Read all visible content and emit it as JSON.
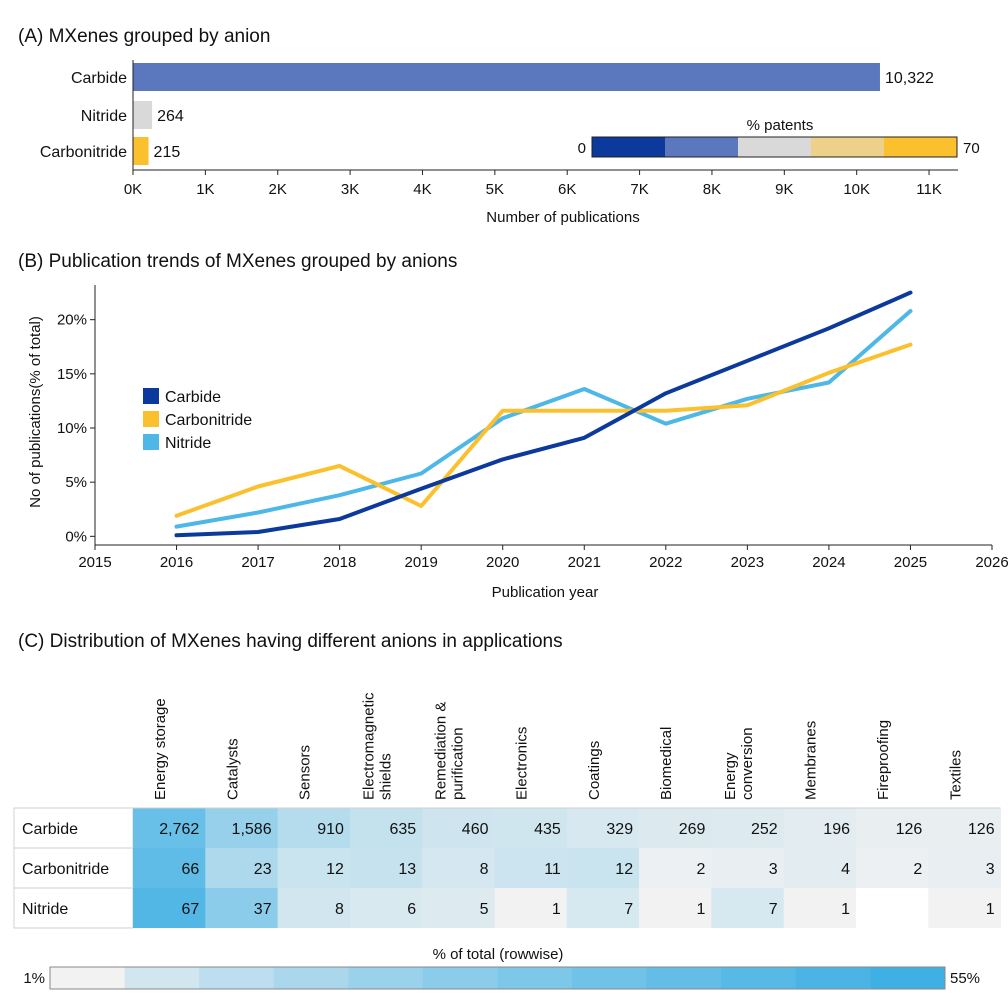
{
  "chart_data": [
    {
      "id": "A",
      "type": "bar",
      "orientation": "horizontal",
      "title": "(A) MXenes grouped by anion",
      "categories": [
        "Carbide",
        "Nitride",
        "Carbonitride"
      ],
      "values": [
        10322,
        264,
        215
      ],
      "value_labels": [
        "10,322",
        "264",
        "215"
      ],
      "xlabel": "Number of publications",
      "xlim": [
        0,
        11400
      ],
      "xticks": [
        0,
        1000,
        2000,
        3000,
        4000,
        5000,
        6000,
        7000,
        8000,
        9000,
        10000,
        11000
      ],
      "xtick_labels": [
        "0K",
        "1K",
        "2K",
        "3K",
        "4K",
        "5K",
        "6K",
        "7K",
        "8K",
        "9K",
        "10K",
        "11K"
      ],
      "bar_colors": [
        "#5b78bf",
        "#d9d9d9",
        "#fbc02d"
      ],
      "colorbar": {
        "title": "% patents",
        "min_label": "0",
        "max_label": "70",
        "colors": [
          "#0b3a9c",
          "#5b78bf",
          "#d9d9d9",
          "#edd08a",
          "#fbc02d"
        ]
      }
    },
    {
      "id": "B",
      "type": "line",
      "title": "(B) Publication trends of MXenes grouped by anions",
      "xlabel": "Publication year",
      "ylabel": "No of publications(% of total)",
      "x": [
        2016,
        2017,
        2018,
        2019,
        2020,
        2021,
        2022,
        2023,
        2024,
        2025
      ],
      "xlim": [
        2015,
        2026
      ],
      "xticks": [
        2015,
        2016,
        2017,
        2018,
        2019,
        2020,
        2021,
        2022,
        2023,
        2024,
        2025,
        2026
      ],
      "xtick_labels": [
        "2015",
        "2016",
        "2017",
        "2018",
        "2019",
        "2020",
        "2021",
        "2022",
        "2023",
        "2024",
        "2025",
        "2026"
      ],
      "ylim": [
        -0.8,
        23.2
      ],
      "yticks": [
        0,
        5,
        10,
        15,
        20
      ],
      "ytick_labels": [
        "0%",
        "5%",
        "10%",
        "15%",
        "20%"
      ],
      "legend_position": "left-middle",
      "series": [
        {
          "name": "Carbide",
          "color": "#0b3a9c",
          "values": [
            0.1,
            0.4,
            1.6,
            4.4,
            7.1,
            9.1,
            13.2,
            16.2,
            19.2,
            22.5
          ]
        },
        {
          "name": "Carbonitride",
          "color": "#fbc02d",
          "values": [
            1.9,
            4.6,
            6.5,
            2.8,
            11.6,
            11.6,
            11.6,
            12.1,
            15.1,
            17.7
          ]
        },
        {
          "name": "Nitride",
          "color": "#4db8e8",
          "values": [
            0.9,
            2.2,
            3.8,
            5.8,
            10.9,
            13.6,
            10.4,
            12.7,
            14.2,
            20.8
          ]
        }
      ]
    },
    {
      "id": "C",
      "type": "heatmap",
      "title": "(C) Distribution of MXenes having different anions in applications",
      "columns": [
        [
          "Energy storage"
        ],
        [
          "Catalysts"
        ],
        [
          "Sensors"
        ],
        [
          "Electromagnetic",
          "shields"
        ],
        [
          "Remediation &",
          "purification"
        ],
        [
          "Electronics"
        ],
        [
          "Coatings"
        ],
        [
          "Biomedical"
        ],
        [
          "Energy",
          "conversion"
        ],
        [
          "Membranes"
        ],
        [
          "Fireproofing"
        ],
        [
          "Textiles"
        ]
      ],
      "rows": [
        "Carbide",
        "Carbonitride",
        "Nitride"
      ],
      "values": [
        [
          "2,762",
          "1,586",
          "910",
          "635",
          "460",
          "435",
          "329",
          "269",
          "252",
          "196",
          "126",
          "126"
        ],
        [
          "66",
          "23",
          "12",
          "13",
          "8",
          "11",
          "12",
          "2",
          "3",
          "4",
          "2",
          "3"
        ],
        [
          "67",
          "37",
          "8",
          "6",
          "5",
          "1",
          "7",
          "1",
          "7",
          "1",
          "",
          "1"
        ]
      ],
      "shade_percent": [
        [
          38.3,
          22.0,
          12.6,
          8.8,
          6.4,
          6.0,
          4.6,
          3.7,
          3.5,
          2.7,
          1.7,
          1.7
        ],
        [
          41.8,
          14.6,
          7.6,
          8.2,
          5.1,
          7.0,
          7.6,
          1.3,
          1.9,
          2.5,
          1.3,
          1.9
        ],
        [
          46.5,
          25.7,
          5.6,
          4.2,
          3.5,
          0.7,
          4.9,
          0.7,
          4.9,
          0.7,
          null,
          0.7
        ]
      ],
      "colorbar": {
        "title": "% of total (rowwise)",
        "min_label": "1%",
        "max_label": "55%",
        "min_color": "#f2f2f2",
        "max_color": "#3fb0e4"
      }
    }
  ]
}
